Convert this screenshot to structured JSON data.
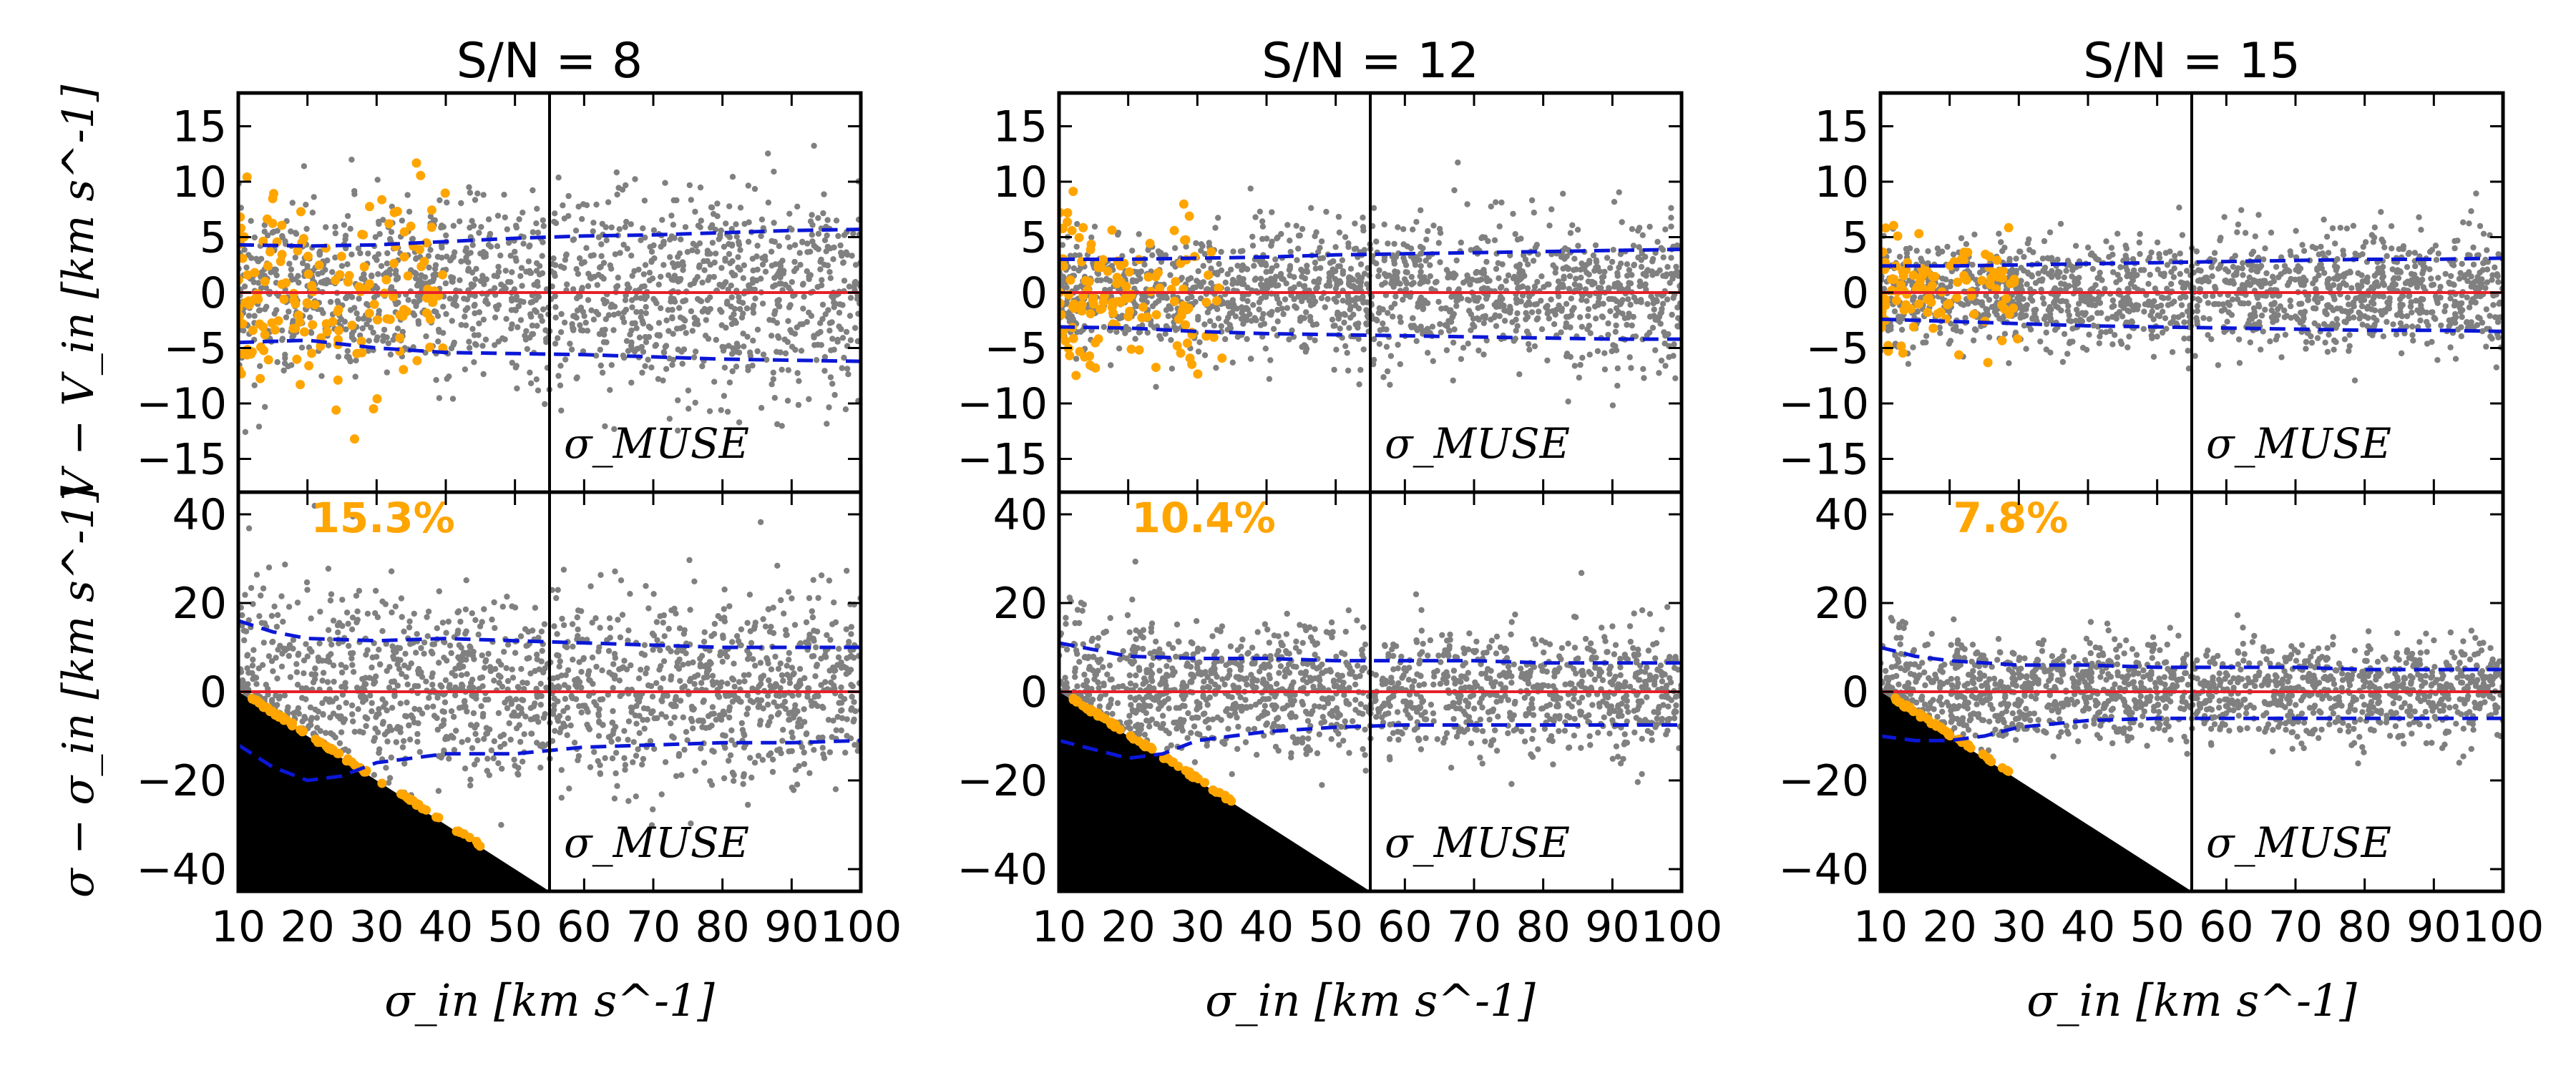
{
  "chart_data": {
    "type": "scatter",
    "colors": {
      "points": "#808080",
      "highlight": "#FFA500",
      "zero_line": "#E8202A",
      "envelope": "#0B17D6",
      "excluded_region": "#000000",
      "frame": "#000000"
    },
    "shared": {
      "xlabel": "σ_in [km s^-1]",
      "xlim": [
        10,
        100
      ],
      "xticks": [
        10,
        20,
        30,
        40,
        50,
        60,
        70,
        80,
        90,
        100
      ],
      "vline_x": 55,
      "vline_label": "σ_MUSE",
      "top_ylabel": "V − V_in [km s^-1]",
      "top_ylim": [
        -18,
        18
      ],
      "top_yticks": [
        15,
        10,
        5,
        0,
        -5,
        -10,
        -15
      ],
      "bottom_ylabel": "σ − σ_in [km s^-1]",
      "bottom_ylim": [
        -45,
        45
      ],
      "bottom_yticks": [
        40,
        20,
        0,
        -20,
        -40
      ],
      "zero_line": 0,
      "excluded_region": "σ − σ_in < 10 − σ_in (black triangle)"
    },
    "panels": [
      {
        "title": "S/N = 8",
        "percent_label": "15.3%",
        "top_scatter_spread": 3.6,
        "bottom_scatter_spread": 10,
        "top_envelope_upper": {
          "x": [
            10,
            20,
            30,
            40,
            50,
            60,
            70,
            80,
            90,
            100
          ],
          "y": [
            4.3,
            4.2,
            4.3,
            4.6,
            4.9,
            5.1,
            5.2,
            5.4,
            5.6,
            5.7
          ]
        },
        "top_envelope_lower": {
          "x": [
            10,
            20,
            30,
            40,
            50,
            60,
            70,
            80,
            90,
            100
          ],
          "y": [
            -4.5,
            -4.3,
            -5.0,
            -5.4,
            -5.5,
            -5.6,
            -5.8,
            -6.0,
            -6.1,
            -6.2
          ]
        },
        "bottom_envelope_upper": {
          "x": [
            10,
            15,
            20,
            30,
            40,
            50,
            60,
            70,
            80,
            90,
            100
          ],
          "y": [
            16,
            13.5,
            12,
            11.5,
            12,
            11.5,
            11,
            10.5,
            10,
            10,
            10
          ]
        },
        "bottom_envelope_lower": {
          "x": [
            10,
            15,
            20,
            25,
            30,
            40,
            50,
            60,
            70,
            80,
            90,
            100
          ],
          "y": [
            -12,
            -17,
            -20,
            -19,
            -16,
            -14,
            -14,
            -12.5,
            -12,
            -11.5,
            -11.5,
            -11
          ]
        }
      },
      {
        "title": "S/N = 12",
        "percent_label": "10.4%",
        "top_scatter_spread": 2.6,
        "bottom_scatter_spread": 7,
        "top_envelope_upper": {
          "x": [
            10,
            20,
            30,
            40,
            50,
            60,
            70,
            80,
            90,
            100
          ],
          "y": [
            3.0,
            3.0,
            3.1,
            3.2,
            3.4,
            3.5,
            3.6,
            3.7,
            3.8,
            3.9
          ]
        },
        "top_envelope_lower": {
          "x": [
            10,
            20,
            30,
            40,
            50,
            60,
            70,
            80,
            90,
            100
          ],
          "y": [
            -3.1,
            -3.2,
            -3.5,
            -3.7,
            -3.8,
            -3.9,
            -4.0,
            -4.1,
            -4.2,
            -4.2
          ]
        },
        "bottom_envelope_upper": {
          "x": [
            10,
            15,
            20,
            30,
            40,
            50,
            60,
            70,
            80,
            90,
            100
          ],
          "y": [
            11,
            9.5,
            8,
            7.5,
            7.5,
            7,
            7,
            7,
            6.5,
            6.5,
            6.5
          ]
        },
        "bottom_envelope_lower": {
          "x": [
            10,
            15,
            20,
            25,
            30,
            40,
            50,
            60,
            70,
            80,
            90,
            100
          ],
          "y": [
            -11,
            -13,
            -15,
            -14,
            -11,
            -9,
            -8,
            -7.5,
            -7.5,
            -7.5,
            -7.5,
            -7.5
          ]
        }
      },
      {
        "title": "S/N = 15",
        "percent_label": "7.8%",
        "top_scatter_spread": 2.1,
        "bottom_scatter_spread": 5.5,
        "top_envelope_upper": {
          "x": [
            10,
            20,
            30,
            40,
            50,
            60,
            70,
            80,
            90,
            100
          ],
          "y": [
            2.4,
            2.4,
            2.5,
            2.6,
            2.7,
            2.8,
            2.9,
            3.0,
            3.0,
            3.1
          ]
        },
        "top_envelope_lower": {
          "x": [
            10,
            20,
            30,
            40,
            50,
            60,
            70,
            80,
            90,
            100
          ],
          "y": [
            -2.4,
            -2.6,
            -2.8,
            -3.0,
            -3.1,
            -3.2,
            -3.3,
            -3.4,
            -3.4,
            -3.5
          ]
        },
        "bottom_envelope_upper": {
          "x": [
            10,
            15,
            20,
            30,
            40,
            50,
            60,
            70,
            80,
            90,
            100
          ],
          "y": [
            10,
            8,
            7,
            6,
            6,
            5.5,
            5.5,
            5.5,
            5,
            5,
            5
          ]
        },
        "bottom_envelope_lower": {
          "x": [
            10,
            15,
            20,
            25,
            30,
            40,
            50,
            60,
            70,
            80,
            90,
            100
          ],
          "y": [
            -10,
            -11,
            -11,
            -10,
            -8,
            -6.5,
            -6,
            -6,
            -6,
            -6,
            -6,
            -6
          ]
        }
      }
    ]
  }
}
